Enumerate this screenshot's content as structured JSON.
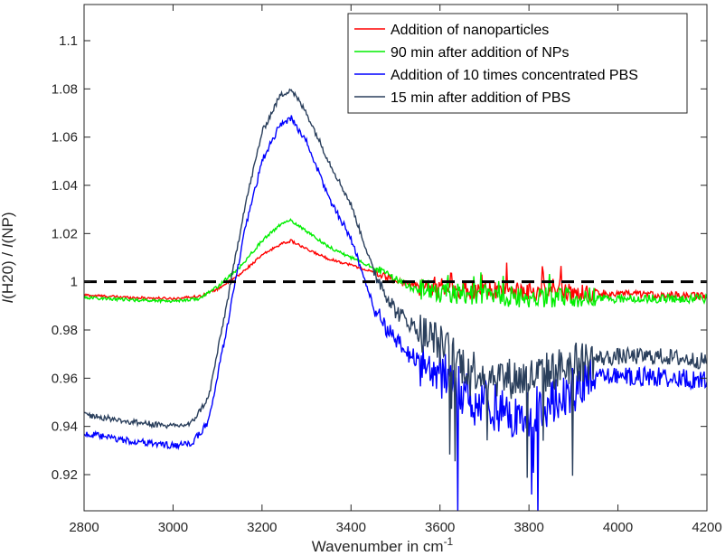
{
  "chart_data": {
    "type": "line",
    "title": "",
    "xlabel": "Wavenumber in cm",
    "xlabel_superscript": "-1",
    "ylabel_parts": [
      "I",
      "(H20) / ",
      "I",
      "(NP)"
    ],
    "xlim": [
      2800,
      4200
    ],
    "ylim": [
      0.905,
      1.115
    ],
    "xticks": [
      2800,
      3000,
      3200,
      3400,
      3600,
      3800,
      4000,
      4200
    ],
    "yticks": [
      0.92,
      0.94,
      0.96,
      0.98,
      1,
      1.02,
      1.04,
      1.06,
      1.08,
      1.1
    ],
    "ytick_labels": [
      "0.92",
      "0.94",
      "0.96",
      "0.98",
      "1",
      "1.02",
      "1.04",
      "1.06",
      "1.08",
      "1.1"
    ],
    "grid": false,
    "legend_position": "top-right",
    "reference_line": {
      "y": 1.0,
      "style": "dashed",
      "color": "#000000"
    },
    "series": [
      {
        "name": "Addition of nanoparticles",
        "color": "#ff0000",
        "noise": 0.0015,
        "x": [
          2800,
          2900,
          3000,
          3060,
          3100,
          3150,
          3200,
          3240,
          3265,
          3300,
          3350,
          3400,
          3450,
          3500,
          3550,
          3600,
          3700,
          3800,
          3900,
          4000,
          4100,
          4200
        ],
        "y": [
          0.9945,
          0.9935,
          0.993,
          0.994,
          0.997,
          1.003,
          1.011,
          1.0155,
          1.017,
          1.0135,
          1.0095,
          1.007,
          1.004,
          1.0005,
          0.998,
          0.997,
          0.9965,
          0.996,
          0.9955,
          0.995,
          0.9945,
          0.994
        ]
      },
      {
        "name": "90 min after addition of NPs",
        "color": "#00ee00",
        "noise": 0.0018,
        "x": [
          2800,
          2900,
          3000,
          3060,
          3100,
          3150,
          3200,
          3240,
          3265,
          3300,
          3350,
          3400,
          3450,
          3500,
          3550,
          3600,
          3700,
          3800,
          3900,
          4000,
          4100,
          4200
        ],
        "y": [
          0.9935,
          0.9925,
          0.992,
          0.993,
          0.998,
          1.006,
          1.017,
          1.0235,
          1.0255,
          1.021,
          1.0145,
          1.01,
          1.006,
          1.001,
          0.997,
          0.9955,
          0.9945,
          0.9935,
          0.9935,
          0.993,
          0.993,
          0.993
        ]
      },
      {
        "name": "Addition of 10 times concentrated PBS",
        "color": "#0000ff",
        "noise": 0.004,
        "x": [
          2800,
          2900,
          3000,
          3040,
          3080,
          3120,
          3160,
          3200,
          3240,
          3265,
          3300,
          3350,
          3400,
          3450,
          3500,
          3550,
          3600,
          3650,
          3700,
          3750,
          3800,
          3850,
          3900,
          3950,
          4000,
          4100,
          4200
        ],
        "y": [
          0.937,
          0.934,
          0.932,
          0.9325,
          0.942,
          0.98,
          1.02,
          1.05,
          1.065,
          1.068,
          1.058,
          1.035,
          1.018,
          0.99,
          0.975,
          0.967,
          0.962,
          0.955,
          0.95,
          0.945,
          0.945,
          0.95,
          0.955,
          0.96,
          0.961,
          0.9605,
          0.959
        ]
      },
      {
        "name": "15 min after addition of PBS",
        "color": "#2a3f5c",
        "noise": 0.0035,
        "x": [
          2800,
          2900,
          3000,
          3040,
          3080,
          3120,
          3160,
          3200,
          3240,
          3265,
          3300,
          3350,
          3400,
          3450,
          3500,
          3550,
          3600,
          3650,
          3700,
          3750,
          3800,
          3850,
          3900,
          3950,
          4000,
          4100,
          4200
        ],
        "y": [
          0.945,
          0.942,
          0.94,
          0.941,
          0.952,
          0.99,
          1.03,
          1.062,
          1.077,
          1.08,
          1.07,
          1.05,
          1.032,
          1.005,
          0.988,
          0.98,
          0.974,
          0.966,
          0.962,
          0.96,
          0.96,
          0.963,
          0.966,
          0.968,
          0.969,
          0.969,
          0.967
        ]
      }
    ]
  }
}
